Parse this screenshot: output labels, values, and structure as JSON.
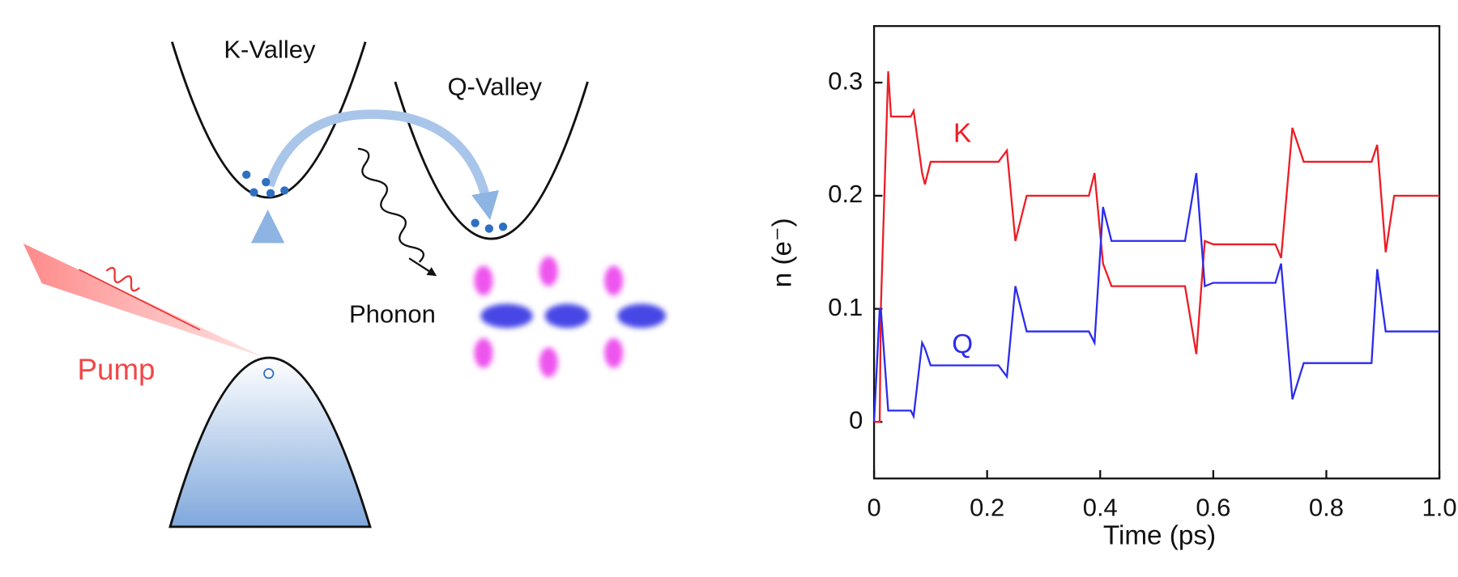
{
  "diagram": {
    "k_valley": "K-Valley",
    "q_valley": "Q-Valley",
    "pump": "Pump",
    "phonon": "Phonon"
  },
  "chart_data": {
    "type": "line",
    "x_label": "Time (ps)",
    "y_label": "n (e⁻)",
    "x": [
      0,
      0.01,
      0.012,
      0.025,
      0.03,
      0.065,
      0.07,
      0.085,
      0.09,
      0.1,
      0.22,
      0.235,
      0.25,
      0.27,
      0.38,
      0.39,
      0.405,
      0.42,
      0.55,
      0.57,
      0.585,
      0.6,
      0.71,
      0.72,
      0.74,
      0.76,
      0.88,
      0.89,
      0.905,
      0.92,
      1.0
    ],
    "series": [
      {
        "name": "K",
        "color": "#ee1c25",
        "values": [
          0,
          0,
          0.1,
          0.31,
          0.27,
          0.27,
          0.275,
          0.22,
          0.21,
          0.23,
          0.23,
          0.24,
          0.16,
          0.2,
          0.2,
          0.22,
          0.14,
          0.12,
          0.12,
          0.06,
          0.16,
          0.157,
          0.157,
          0.145,
          0.26,
          0.23,
          0.23,
          0.245,
          0.15,
          0.2,
          0.2
        ]
      },
      {
        "name": "Q",
        "color": "#2b2bef",
        "values": [
          0,
          0.1,
          0.1,
          0.01,
          0.01,
          0.01,
          0.005,
          0.07,
          0.065,
          0.05,
          0.05,
          0.04,
          0.12,
          0.08,
          0.08,
          0.07,
          0.19,
          0.16,
          0.16,
          0.22,
          0.12,
          0.123,
          0.123,
          0.14,
          0.02,
          0.052,
          0.052,
          0.135,
          0.08,
          0.08,
          0.08
        ]
      }
    ],
    "xlim": [
      0,
      1
    ],
    "xticks": [
      0,
      0.2,
      0.4,
      0.6,
      0.8,
      {
        "value": 1,
        "label": "1.0"
      }
    ],
    "ylim": [
      -0.05,
      0.35
    ],
    "yticks": [
      0,
      0.1,
      0.2,
      0.3
    ]
  }
}
